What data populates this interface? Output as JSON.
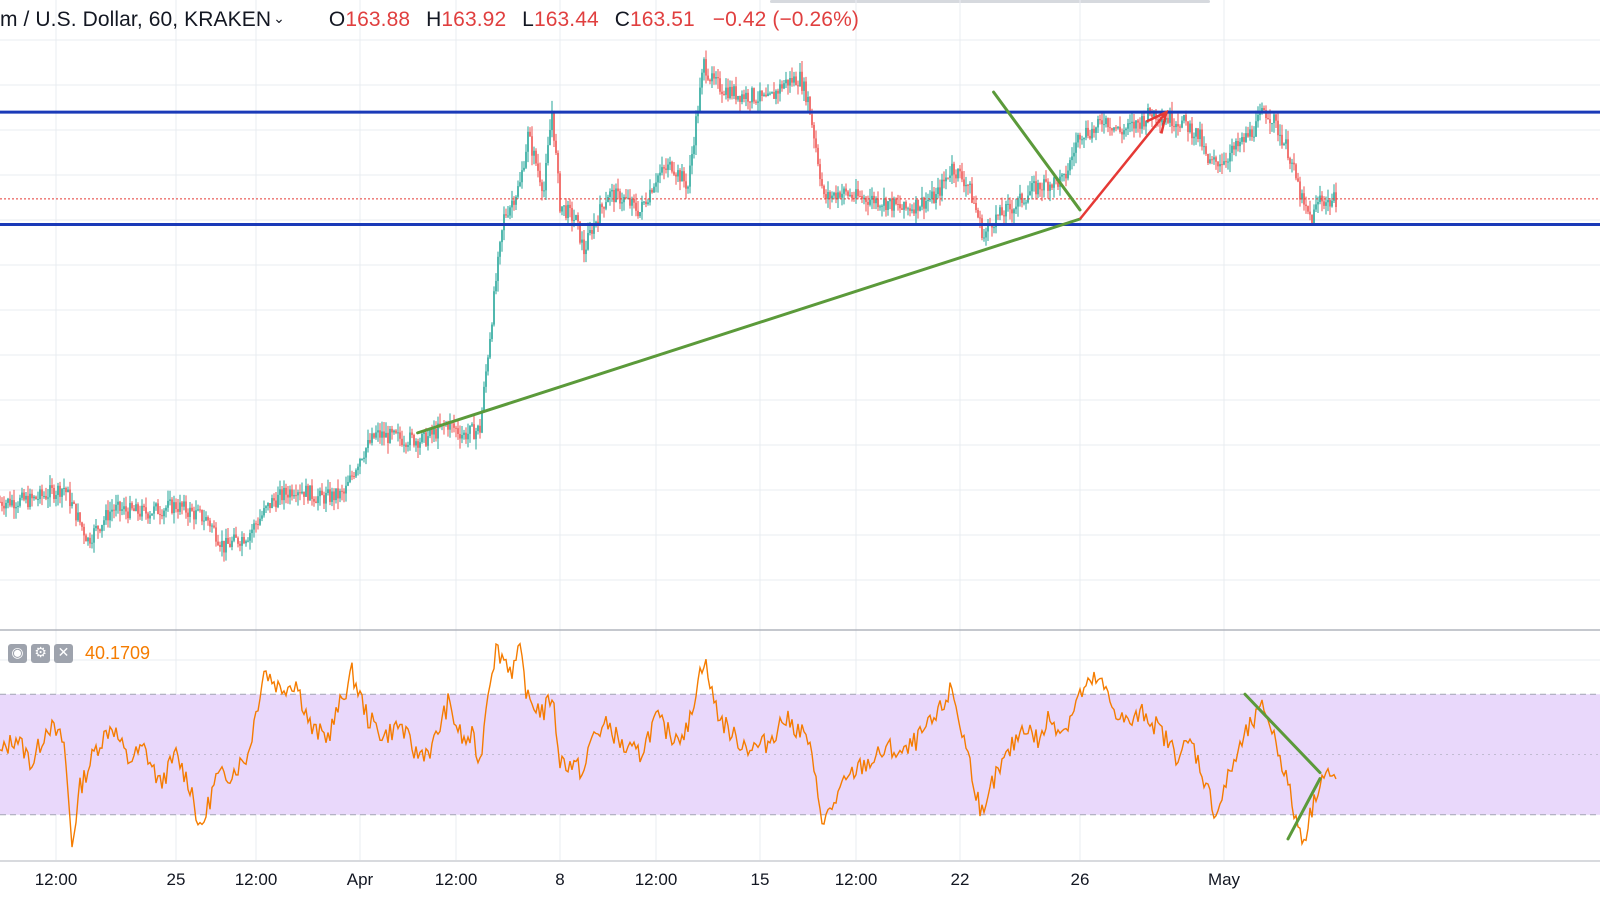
{
  "header": {
    "symbol": "m / U.S. Dollar, 60, KRAKEN",
    "open_label": "O",
    "open": "163.88",
    "high_label": "H",
    "high": "163.92",
    "low_label": "L",
    "low": "163.44",
    "close_label": "C",
    "close": "163.51",
    "change": "−0.42 (−0.26%)"
  },
  "indicator": {
    "value": "40.1709",
    "buttons": [
      {
        "icon": "eye-icon",
        "glyph": "◉"
      },
      {
        "icon": "gear-icon",
        "glyph": "⚙"
      },
      {
        "icon": "close-icon",
        "glyph": "✕"
      }
    ],
    "upper_band": 70,
    "lower_band": 30,
    "range": [
      15,
      88
    ]
  },
  "chart_data": {
    "type": "candlestick",
    "x_ticks": [
      "12:00",
      "25",
      "12:00",
      "Apr",
      "12:00",
      "8",
      "12:00",
      "15",
      "12:00",
      "22",
      "26",
      "May"
    ],
    "y_range_estimate": [
      140,
      172
    ],
    "last_price": 163.51,
    "horizontal_levels": [
      {
        "name": "resistance",
        "value": 168.3,
        "color": "#1a3ab8"
      },
      {
        "name": "support",
        "value": 162.1,
        "color": "#1a3ab8"
      }
    ],
    "trendlines": [
      {
        "name": "rising-support",
        "color": "#5b9a3a",
        "from": {
          "date": "Apr 3",
          "value": 150.6
        },
        "to": {
          "date": "Apr 26",
          "value": 162.4
        }
      },
      {
        "name": "descending-resistance",
        "color": "#5b9a3a",
        "from": {
          "date": "Apr 23",
          "value": 169.4
        },
        "to": {
          "date": "Apr 26",
          "value": 162.9
        }
      }
    ],
    "projection_arrow": {
      "color": "#e53935",
      "from": {
        "date": "Apr 26",
        "value": 162.4
      },
      "to": {
        "date": "Apr 29",
        "value": 168.3
      }
    },
    "price_path": [
      {
        "x": 0,
        "y": 146.8
      },
      {
        "x": 4,
        "y": 146.9
      },
      {
        "x": 8,
        "y": 147.6
      },
      {
        "x": 11,
        "y": 144.7
      },
      {
        "x": 14,
        "y": 146.4
      },
      {
        "x": 18,
        "y": 146.2
      },
      {
        "x": 22,
        "y": 146.6
      },
      {
        "x": 26,
        "y": 145.8
      },
      {
        "x": 28,
        "y": 144.3
      },
      {
        "x": 31,
        "y": 145.0
      },
      {
        "x": 34,
        "y": 146.8
      },
      {
        "x": 37,
        "y": 147.6
      },
      {
        "x": 40,
        "y": 147.0
      },
      {
        "x": 43,
        "y": 147.2
      },
      {
        "x": 45,
        "y": 149.3
      },
      {
        "x": 47,
        "y": 150.5
      },
      {
        "x": 50,
        "y": 150.3
      },
      {
        "x": 53,
        "y": 150.2
      },
      {
        "x": 56,
        "y": 151.1
      },
      {
        "x": 58,
        "y": 150.5
      },
      {
        "x": 60,
        "y": 150.8
      },
      {
        "x": 61,
        "y": 155.0
      },
      {
        "x": 62,
        "y": 159.0
      },
      {
        "x": 63,
        "y": 162.5
      },
      {
        "x": 65,
        "y": 164.3
      },
      {
        "x": 66,
        "y": 167.0
      },
      {
        "x": 68,
        "y": 164.0
      },
      {
        "x": 69,
        "y": 168.4
      },
      {
        "x": 70,
        "y": 163.2
      },
      {
        "x": 72,
        "y": 162.3
      },
      {
        "x": 73,
        "y": 160.6
      },
      {
        "x": 74,
        "y": 161.9
      },
      {
        "x": 76,
        "y": 163.8
      },
      {
        "x": 78,
        "y": 163.5
      },
      {
        "x": 80,
        "y": 162.8
      },
      {
        "x": 82,
        "y": 164.7
      },
      {
        "x": 84,
        "y": 165.4
      },
      {
        "x": 86,
        "y": 164.2
      },
      {
        "x": 87,
        "y": 167.8
      },
      {
        "x": 88,
        "y": 171.0
      },
      {
        "x": 89,
        "y": 170.0
      },
      {
        "x": 90,
        "y": 169.7
      },
      {
        "x": 92,
        "y": 169.3
      },
      {
        "x": 94,
        "y": 169.2
      },
      {
        "x": 96,
        "y": 168.9
      },
      {
        "x": 98,
        "y": 169.9
      },
      {
        "x": 100,
        "y": 170.2
      },
      {
        "x": 101,
        "y": 169.0
      },
      {
        "x": 102,
        "y": 166.4
      },
      {
        "x": 103,
        "y": 163.5
      },
      {
        "x": 105,
        "y": 163.9
      },
      {
        "x": 107,
        "y": 163.6
      },
      {
        "x": 109,
        "y": 163.5
      },
      {
        "x": 111,
        "y": 163.3
      },
      {
        "x": 113,
        "y": 162.9
      },
      {
        "x": 115,
        "y": 163.3
      },
      {
        "x": 117,
        "y": 163.6
      },
      {
        "x": 119,
        "y": 165.3
      },
      {
        "x": 121,
        "y": 164.3
      },
      {
        "x": 122,
        "y": 162.9
      },
      {
        "x": 123,
        "y": 161.4
      },
      {
        "x": 124,
        "y": 162.3
      },
      {
        "x": 125,
        "y": 162.6
      },
      {
        "x": 127,
        "y": 163.2
      },
      {
        "x": 129,
        "y": 164.0
      },
      {
        "x": 131,
        "y": 164.4
      },
      {
        "x": 133,
        "y": 164.5
      },
      {
        "x": 135,
        "y": 167.2
      },
      {
        "x": 137,
        "y": 167.3
      },
      {
        "x": 138,
        "y": 168.0
      },
      {
        "x": 140,
        "y": 167.2
      },
      {
        "x": 142,
        "y": 167.6
      },
      {
        "x": 144,
        "y": 168.3
      },
      {
        "x": 146,
        "y": 168.0
      },
      {
        "x": 148,
        "y": 167.7
      },
      {
        "x": 150,
        "y": 166.9
      },
      {
        "x": 151,
        "y": 165.4
      },
      {
        "x": 153,
        "y": 165.7
      },
      {
        "x": 155,
        "y": 166.5
      },
      {
        "x": 157,
        "y": 167.5
      },
      {
        "x": 158,
        "y": 168.4
      },
      {
        "x": 159,
        "y": 168.0
      },
      {
        "x": 161,
        "y": 166.2
      },
      {
        "x": 162,
        "y": 164.6
      },
      {
        "x": 163,
        "y": 163.0
      },
      {
        "x": 164,
        "y": 162.4
      },
      {
        "x": 165,
        "y": 163.6
      },
      {
        "x": 166,
        "y": 163.3
      },
      {
        "x": 167,
        "y": 163.5
      }
    ],
    "rsi_path": [
      {
        "x": 0,
        "y": 50
      },
      {
        "x": 2,
        "y": 56
      },
      {
        "x": 4,
        "y": 47
      },
      {
        "x": 6,
        "y": 60
      },
      {
        "x": 8,
        "y": 54
      },
      {
        "x": 9,
        "y": 20
      },
      {
        "x": 10,
        "y": 39
      },
      {
        "x": 12,
        "y": 52
      },
      {
        "x": 14,
        "y": 60
      },
      {
        "x": 16,
        "y": 48
      },
      {
        "x": 18,
        "y": 52
      },
      {
        "x": 20,
        "y": 40
      },
      {
        "x": 22,
        "y": 50
      },
      {
        "x": 24,
        "y": 38
      },
      {
        "x": 25,
        "y": 24
      },
      {
        "x": 27,
        "y": 42
      },
      {
        "x": 29,
        "y": 44
      },
      {
        "x": 31,
        "y": 50
      },
      {
        "x": 33,
        "y": 78
      },
      {
        "x": 35,
        "y": 72
      },
      {
        "x": 37,
        "y": 74
      },
      {
        "x": 39,
        "y": 58
      },
      {
        "x": 41,
        "y": 56
      },
      {
        "x": 43,
        "y": 70
      },
      {
        "x": 44,
        "y": 77
      },
      {
        "x": 46,
        "y": 62
      },
      {
        "x": 48,
        "y": 56
      },
      {
        "x": 50,
        "y": 60
      },
      {
        "x": 52,
        "y": 50
      },
      {
        "x": 54,
        "y": 52
      },
      {
        "x": 56,
        "y": 67
      },
      {
        "x": 57,
        "y": 60
      },
      {
        "x": 58,
        "y": 54
      },
      {
        "x": 59,
        "y": 56
      },
      {
        "x": 60,
        "y": 47
      },
      {
        "x": 61,
        "y": 72
      },
      {
        "x": 62,
        "y": 85
      },
      {
        "x": 63,
        "y": 82
      },
      {
        "x": 64,
        "y": 78
      },
      {
        "x": 65,
        "y": 84
      },
      {
        "x": 66,
        "y": 68
      },
      {
        "x": 68,
        "y": 64
      },
      {
        "x": 69,
        "y": 70
      },
      {
        "x": 70,
        "y": 48
      },
      {
        "x": 72,
        "y": 46
      },
      {
        "x": 73,
        "y": 44
      },
      {
        "x": 74,
        "y": 56
      },
      {
        "x": 76,
        "y": 60
      },
      {
        "x": 78,
        "y": 52
      },
      {
        "x": 80,
        "y": 50
      },
      {
        "x": 82,
        "y": 62
      },
      {
        "x": 84,
        "y": 56
      },
      {
        "x": 86,
        "y": 58
      },
      {
        "x": 87,
        "y": 72
      },
      {
        "x": 88,
        "y": 82
      },
      {
        "x": 89,
        "y": 70
      },
      {
        "x": 90,
        "y": 62
      },
      {
        "x": 92,
        "y": 55
      },
      {
        "x": 94,
        "y": 52
      },
      {
        "x": 96,
        "y": 54
      },
      {
        "x": 98,
        "y": 62
      },
      {
        "x": 100,
        "y": 58
      },
      {
        "x": 101,
        "y": 55
      },
      {
        "x": 102,
        "y": 40
      },
      {
        "x": 103,
        "y": 27
      },
      {
        "x": 105,
        "y": 38
      },
      {
        "x": 107,
        "y": 45
      },
      {
        "x": 109,
        "y": 48
      },
      {
        "x": 111,
        "y": 52
      },
      {
        "x": 113,
        "y": 50
      },
      {
        "x": 115,
        "y": 56
      },
      {
        "x": 117,
        "y": 62
      },
      {
        "x": 119,
        "y": 72
      },
      {
        "x": 120,
        "y": 60
      },
      {
        "x": 121,
        "y": 50
      },
      {
        "x": 122,
        "y": 38
      },
      {
        "x": 123,
        "y": 28
      },
      {
        "x": 124,
        "y": 40
      },
      {
        "x": 126,
        "y": 50
      },
      {
        "x": 128,
        "y": 60
      },
      {
        "x": 130,
        "y": 54
      },
      {
        "x": 131,
        "y": 62
      },
      {
        "x": 133,
        "y": 58
      },
      {
        "x": 135,
        "y": 70
      },
      {
        "x": 137,
        "y": 75
      },
      {
        "x": 138,
        "y": 72
      },
      {
        "x": 139,
        "y": 66
      },
      {
        "x": 141,
        "y": 60
      },
      {
        "x": 143,
        "y": 64
      },
      {
        "x": 145,
        "y": 58
      },
      {
        "x": 147,
        "y": 50
      },
      {
        "x": 149,
        "y": 54
      },
      {
        "x": 150,
        "y": 46
      },
      {
        "x": 151,
        "y": 38
      },
      {
        "x": 152,
        "y": 30
      },
      {
        "x": 154,
        "y": 46
      },
      {
        "x": 156,
        "y": 58
      },
      {
        "x": 158,
        "y": 66
      },
      {
        "x": 159,
        "y": 58
      },
      {
        "x": 160,
        "y": 50
      },
      {
        "x": 161,
        "y": 40
      },
      {
        "x": 162,
        "y": 28
      },
      {
        "x": 163,
        "y": 22
      },
      {
        "x": 164,
        "y": 32
      },
      {
        "x": 165,
        "y": 42
      },
      {
        "x": 166,
        "y": 44
      },
      {
        "x": 167,
        "y": 40
      }
    ],
    "x_domain": [
      0,
      200
    ],
    "tick_positions": [
      7,
      22,
      32,
      45,
      57,
      70,
      82,
      95,
      107,
      120,
      135,
      153
    ]
  },
  "colors": {
    "up": "#26a69a",
    "down": "#ef5350",
    "grid": "#e9ecf1",
    "rsi_line": "#f57c00",
    "rsi_band": "#e9d8fb",
    "level_line": "#1a3ab8",
    "trend_line": "#5b9a3a",
    "arrow": "#e53935",
    "price_dotted": "#e53935"
  }
}
